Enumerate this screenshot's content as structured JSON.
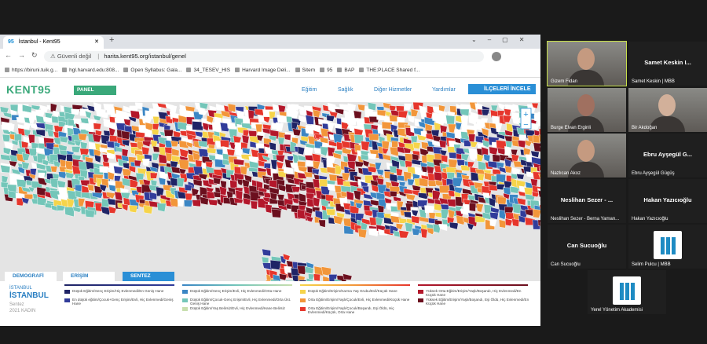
{
  "browser": {
    "tab_icon": "95",
    "tab_title": "İstanbul - Kent95",
    "security": "Güvenli değil",
    "url": "harita.kent95.org/istanbul/genel",
    "bookmarks": [
      "https://biruni.tuik.g...",
      "hgl.harvard.edu:808...",
      "Open Syllabus: Gala...",
      "34_TESEV_HIS",
      "Harvard Image Deli...",
      "Sitem",
      "95",
      "BAP",
      "THE:PLACE Shared f..."
    ]
  },
  "site": {
    "logo": "KENT95",
    "panel": "PANEL",
    "nav": [
      "Eğitim",
      "Sağlık",
      "Diğer Hizmetler",
      "Yardımlar",
      "İLÇELERİ İNCELE"
    ],
    "tabs": [
      "DEMOGRAFİ",
      "ERİŞİM",
      "SENTEZ"
    ],
    "legend": {
      "city_small": "İSTANBUL",
      "city": "İSTANBUL",
      "subtitle": "Sentez",
      "year": "2021 KADIN",
      "columns": [
        [
          {
            "label": "Düşük Eğitim/Genç Erişim/Hiç Evlenmedi/En Geniş Hane",
            "color": "#1f2466"
          },
          {
            "label": "En düşük eğitim/Çocuk+Genç Erişim/Evli, Hiç Evlenmedi/Geniş Hane",
            "color": "#313c9a"
          }
        ],
        [
          {
            "label": "Düşük Eğitim/Genç Erişim/Evli, Hiç Evlenmedi/Orta Hane",
            "color": "#3b86c4"
          },
          {
            "label": "Düşük Eğitim/Çocuk-Genç Erişim/Evli, Hiç Evlenmedi/Orta Üst. Geniş Hane",
            "color": "#74c6b9"
          },
          {
            "label": "Düşük Eğitim/Yaş Belirsiz/Evli, Hiç Evlenmedi/Hane Belirsiz",
            "color": "#c8dfae"
          }
        ],
        [
          {
            "label": "Düşük Eğitim/Erişim/Karma Yaş Grubu/Evli/Küçük Hane",
            "color": "#f6d44a"
          },
          {
            "label": "Orta Eğitim/Erişim/Yaşlı/Çocuk/Evli, Hiç Evlenmedi/Küçük Hane",
            "color": "#f2963a"
          },
          {
            "label": "Orta Eğitim/Erişim/Yaşlı/Çocuk/Boşandı, Eşi Öldü, Hiç Evlenmedi/Küçük, Orta Hane",
            "color": "#e6362c"
          }
        ],
        [
          {
            "label": "Yüksek Orta Eğitim/Erişim/Yaşlı/Boşandı, Hiç Evlenmedi/En Küçük Hane",
            "color": "#b3172b"
          },
          {
            "label": "Yüksek Eğitim/Erişim/Yaşlı/Boşandı, Eşi Öldü, Hiç Evlenmedi/En Küçük Hane",
            "color": "#6b0f1e"
          }
        ]
      ]
    }
  },
  "participants": [
    {
      "name": "Gizem Fidan",
      "kind": "video"
    },
    {
      "big": "Samet Keskin I...",
      "name": "Samet Keskin | MBB",
      "kind": "text"
    },
    {
      "name": "Burge Elvan Erginli",
      "kind": "video"
    },
    {
      "name": "Bir Akdoğan",
      "kind": "video"
    },
    {
      "name": "Nazlıcan Akoz",
      "kind": "video"
    },
    {
      "big": "Ebru Ayşegül G...",
      "name": "Ebru Ayşegül Gügüş",
      "kind": "text"
    },
    {
      "big": "Neslihan Sezer - ...",
      "name": "Neslihan Sezer - Berna Yaman...",
      "kind": "text"
    },
    {
      "big": "Hakan Yazıcıoğlu",
      "name": "Hakan Yazıcıoğlu",
      "kind": "text"
    },
    {
      "big": "Can Sucuoğlu",
      "name": "Can Sucuoğlu",
      "kind": "text"
    },
    {
      "name": "Selim Pulcu | MBB",
      "kind": "logo"
    },
    {
      "name": "Yerel Yönetim Akademisi",
      "kind": "logo"
    }
  ]
}
